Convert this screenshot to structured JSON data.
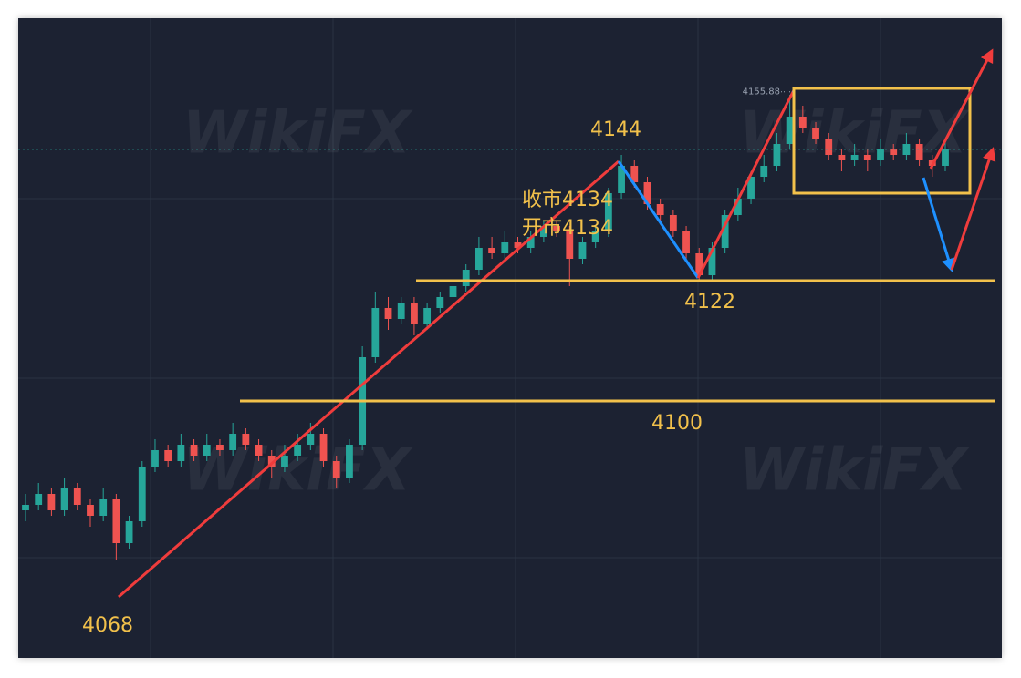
{
  "chart_data": {
    "type": "candlestick",
    "ylim": [
      4053,
      4170
    ],
    "up_color": "#26a69a",
    "down_color": "#ef5350",
    "open": [
      4080,
      4081,
      4083,
      4080,
      4084,
      4081,
      4079,
      4082,
      4074,
      4078,
      4088,
      4091,
      4089,
      4092,
      4090,
      4092,
      4091,
      4094,
      4092,
      4090,
      4088,
      4090,
      4092,
      4094,
      4089,
      4086,
      4092,
      4108,
      4117,
      4115,
      4118,
      4114,
      4117,
      4119,
      4121,
      4124,
      4128,
      4127,
      4129,
      4128,
      4130,
      4132,
      4131,
      4126,
      4129,
      4131,
      4138,
      4143,
      4140,
      4136,
      4134,
      4131,
      4127,
      4123,
      4128,
      4134,
      4137,
      4141,
      4143,
      4147,
      4152,
      4150,
      4148,
      4145,
      4144,
      4145,
      4144,
      4146,
      4145,
      4147,
      4144,
      4143
    ],
    "high": [
      4083,
      4085,
      4084,
      4086,
      4085,
      4082,
      4084,
      4083,
      4079,
      4089,
      4093,
      4092,
      4094,
      4093,
      4094,
      4093,
      4096,
      4095,
      4093,
      4091,
      4092,
      4094,
      4096,
      4095,
      4090,
      4093,
      4110,
      4120,
      4119,
      4119,
      4119,
      4118,
      4120,
      4122,
      4125,
      4130,
      4130,
      4131,
      4130,
      4131,
      4133,
      4133,
      4132,
      4130,
      4132,
      4139,
      4145,
      4144,
      4141,
      4137,
      4135,
      4132,
      4128,
      4129,
      4135,
      4139,
      4142,
      4145,
      4149,
      4156,
      4154,
      4151,
      4149,
      4146,
      4147,
      4146,
      4148,
      4147,
      4149,
      4148,
      4145,
      4148
    ],
    "low": [
      4078,
      4080,
      4079,
      4079,
      4080,
      4077,
      4078,
      4071,
      4073,
      4077,
      4087,
      4088,
      4088,
      4089,
      4089,
      4090,
      4090,
      4091,
      4089,
      4086,
      4087,
      4089,
      4091,
      4088,
      4084,
      4085,
      4091,
      4107,
      4113,
      4114,
      4112,
      4113,
      4116,
      4118,
      4120,
      4123,
      4126,
      4126,
      4127,
      4127,
      4129,
      4130,
      4121,
      4125,
      4128,
      4130,
      4137,
      4139,
      4135,
      4133,
      4130,
      4126,
      4122,
      4122,
      4127,
      4133,
      4136,
      4140,
      4142,
      4146,
      4149,
      4147,
      4144,
      4142,
      4143,
      4142,
      4143,
      4144,
      4144,
      4143,
      4141,
      4142
    ],
    "close": [
      4081,
      4083,
      4080,
      4084,
      4081,
      4079,
      4082,
      4074,
      4078,
      4088,
      4091,
      4089,
      4092,
      4090,
      4092,
      4091,
      4094,
      4092,
      4090,
      4088,
      4090,
      4092,
      4094,
      4089,
      4086,
      4092,
      4108,
      4117,
      4115,
      4118,
      4114,
      4117,
      4119,
      4121,
      4124,
      4128,
      4127,
      4129,
      4128,
      4130,
      4132,
      4131,
      4126,
      4129,
      4131,
      4138,
      4143,
      4140,
      4136,
      4134,
      4131,
      4127,
      4123,
      4128,
      4134,
      4137,
      4141,
      4143,
      4147,
      4152,
      4150,
      4148,
      4145,
      4144,
      4145,
      4144,
      4146,
      4145,
      4147,
      4144,
      4143,
      4146
    ],
    "levels": [
      4144,
      4122,
      4100,
      4068
    ],
    "notes": [
      "收市4134",
      "开市4134"
    ],
    "last_high": 4155.88,
    "watermark": "WikiFX"
  }
}
